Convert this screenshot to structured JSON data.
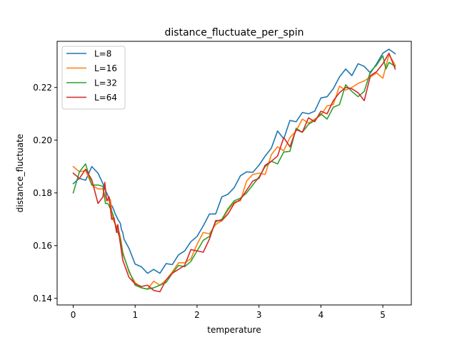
{
  "chart_data": {
    "type": "line",
    "title": "distance_fluctuate_per_spin",
    "xlabel": "temperature",
    "ylabel": "distance_fluctuate",
    "xlim": [
      -0.26,
      5.46
    ],
    "ylim": [
      0.1375,
      0.2375
    ],
    "xticks": [
      0,
      1,
      2,
      3,
      4,
      5
    ],
    "xtick_labels": [
      "0",
      "1",
      "2",
      "3",
      "4",
      "5"
    ],
    "yticks": [
      0.14,
      0.16,
      0.18,
      0.2,
      0.22
    ],
    "ytick_labels": [
      "0.14",
      "0.16",
      "0.18",
      "0.20",
      "0.22"
    ],
    "grid": false,
    "legend_position": "top-left",
    "series": [
      {
        "name": "L=8",
        "color": "#1f77b4",
        "points": [
          [
            0.0,
            0.1835
          ],
          [
            0.1,
            0.1855
          ],
          [
            0.2,
            0.1848
          ],
          [
            0.3,
            0.19
          ],
          [
            0.4,
            0.1875
          ],
          [
            0.48,
            0.1835
          ],
          [
            0.52,
            0.181
          ],
          [
            0.56,
            0.179
          ],
          [
            0.6,
            0.176
          ],
          [
            0.64,
            0.1745
          ],
          [
            0.68,
            0.172
          ],
          [
            0.72,
            0.17
          ],
          [
            0.76,
            0.1685
          ],
          [
            0.78,
            0.166
          ],
          [
            0.8,
            0.165
          ],
          [
            0.82,
            0.1625
          ],
          [
            0.9,
            0.159
          ],
          [
            1.0,
            0.153
          ],
          [
            1.1,
            0.152
          ],
          [
            1.2,
            0.1495
          ],
          [
            1.3,
            0.151
          ],
          [
            1.4,
            0.1495
          ],
          [
            1.5,
            0.1532
          ],
          [
            1.6,
            0.1528
          ],
          [
            1.7,
            0.1565
          ],
          [
            1.8,
            0.158
          ],
          [
            1.9,
            0.1615
          ],
          [
            2.0,
            0.1635
          ],
          [
            2.1,
            0.1675
          ],
          [
            2.2,
            0.172
          ],
          [
            2.3,
            0.172
          ],
          [
            2.4,
            0.1785
          ],
          [
            2.5,
            0.1795
          ],
          [
            2.6,
            0.182
          ],
          [
            2.7,
            0.1865
          ],
          [
            2.8,
            0.188
          ],
          [
            2.9,
            0.1878
          ],
          [
            3.0,
            0.1905
          ],
          [
            3.1,
            0.194
          ],
          [
            3.2,
            0.197
          ],
          [
            3.3,
            0.2035
          ],
          [
            3.4,
            0.2005
          ],
          [
            3.5,
            0.2075
          ],
          [
            3.6,
            0.207
          ],
          [
            3.7,
            0.2105
          ],
          [
            3.8,
            0.21
          ],
          [
            3.9,
            0.211
          ],
          [
            4.0,
            0.216
          ],
          [
            4.1,
            0.2165
          ],
          [
            4.2,
            0.2195
          ],
          [
            4.3,
            0.224
          ],
          [
            4.4,
            0.227
          ],
          [
            4.5,
            0.2245
          ],
          [
            4.6,
            0.229
          ],
          [
            4.7,
            0.228
          ],
          [
            4.8,
            0.2255
          ],
          [
            4.9,
            0.229
          ],
          [
            5.0,
            0.233
          ],
          [
            5.1,
            0.2345
          ],
          [
            5.2,
            0.2328
          ]
        ]
      },
      {
        "name": "L=16",
        "color": "#ff7f0e",
        "points": [
          [
            0.0,
            0.19
          ],
          [
            0.1,
            0.188
          ],
          [
            0.2,
            0.1885
          ],
          [
            0.3,
            0.183
          ],
          [
            0.4,
            0.1815
          ],
          [
            0.48,
            0.1815
          ],
          [
            0.52,
            0.1785
          ],
          [
            0.56,
            0.177
          ],
          [
            0.6,
            0.1775
          ],
          [
            0.64,
            0.17
          ],
          [
            0.68,
            0.168
          ],
          [
            0.72,
            0.167
          ],
          [
            0.76,
            0.1635
          ],
          [
            0.8,
            0.1575
          ],
          [
            0.9,
            0.15
          ],
          [
            1.0,
            0.146
          ],
          [
            1.1,
            0.144
          ],
          [
            1.2,
            0.1435
          ],
          [
            1.3,
            0.1465
          ],
          [
            1.4,
            0.145
          ],
          [
            1.5,
            0.147
          ],
          [
            1.6,
            0.15
          ],
          [
            1.7,
            0.1535
          ],
          [
            1.8,
            0.1535
          ],
          [
            1.9,
            0.155
          ],
          [
            2.0,
            0.1605
          ],
          [
            2.1,
            0.165
          ],
          [
            2.2,
            0.1645
          ],
          [
            2.3,
            0.168
          ],
          [
            2.4,
            0.1695
          ],
          [
            2.5,
            0.1735
          ],
          [
            2.6,
            0.1765
          ],
          [
            2.7,
            0.177
          ],
          [
            2.8,
            0.1845
          ],
          [
            2.9,
            0.187
          ],
          [
            3.0,
            0.1875
          ],
          [
            3.1,
            0.187
          ],
          [
            3.2,
            0.1945
          ],
          [
            3.3,
            0.1975
          ],
          [
            3.4,
            0.196
          ],
          [
            3.5,
            0.201
          ],
          [
            3.6,
            0.2035
          ],
          [
            3.7,
            0.208
          ],
          [
            3.8,
            0.2065
          ],
          [
            3.9,
            0.208
          ],
          [
            4.0,
            0.2095
          ],
          [
            4.1,
            0.213
          ],
          [
            4.2,
            0.2135
          ],
          [
            4.3,
            0.2205
          ],
          [
            4.4,
            0.219
          ],
          [
            4.5,
            0.22
          ],
          [
            4.6,
            0.2215
          ],
          [
            4.7,
            0.2225
          ],
          [
            4.8,
            0.224
          ],
          [
            4.9,
            0.2255
          ],
          [
            5.0,
            0.2235
          ],
          [
            5.1,
            0.2325
          ],
          [
            5.2,
            0.2285
          ]
        ]
      },
      {
        "name": "L=32",
        "color": "#2ca02c",
        "points": [
          [
            0.0,
            0.18
          ],
          [
            0.1,
            0.188
          ],
          [
            0.2,
            0.191
          ],
          [
            0.3,
            0.183
          ],
          [
            0.4,
            0.183
          ],
          [
            0.48,
            0.1825
          ],
          [
            0.52,
            0.176
          ],
          [
            0.56,
            0.176
          ],
          [
            0.6,
            0.174
          ],
          [
            0.64,
            0.172
          ],
          [
            0.68,
            0.168
          ],
          [
            0.72,
            0.165
          ],
          [
            0.76,
            0.1625
          ],
          [
            0.8,
            0.157
          ],
          [
            0.9,
            0.1505
          ],
          [
            1.0,
            0.145
          ],
          [
            1.1,
            0.144
          ],
          [
            1.2,
            0.1435
          ],
          [
            1.3,
            0.144
          ],
          [
            1.4,
            0.145
          ],
          [
            1.5,
            0.146
          ],
          [
            1.6,
            0.1495
          ],
          [
            1.7,
            0.1525
          ],
          [
            1.8,
            0.152
          ],
          [
            1.9,
            0.154
          ],
          [
            2.0,
            0.158
          ],
          [
            2.1,
            0.162
          ],
          [
            2.2,
            0.1635
          ],
          [
            2.3,
            0.169
          ],
          [
            2.4,
            0.17
          ],
          [
            2.5,
            0.174
          ],
          [
            2.6,
            0.177
          ],
          [
            2.7,
            0.178
          ],
          [
            2.8,
            0.18
          ],
          [
            2.9,
            0.183
          ],
          [
            3.0,
            0.186
          ],
          [
            3.1,
            0.19
          ],
          [
            3.2,
            0.192
          ],
          [
            3.3,
            0.191
          ],
          [
            3.4,
            0.1955
          ],
          [
            3.5,
            0.1958
          ],
          [
            3.6,
            0.2045
          ],
          [
            3.7,
            0.203
          ],
          [
            3.8,
            0.206
          ],
          [
            3.9,
            0.2075
          ],
          [
            4.0,
            0.21
          ],
          [
            4.1,
            0.208
          ],
          [
            4.2,
            0.2125
          ],
          [
            4.3,
            0.2135
          ],
          [
            4.4,
            0.221
          ],
          [
            4.5,
            0.2185
          ],
          [
            4.6,
            0.2165
          ],
          [
            4.7,
            0.2185
          ],
          [
            4.8,
            0.226
          ],
          [
            4.9,
            0.2285
          ],
          [
            5.0,
            0.232
          ],
          [
            5.05,
            0.227
          ],
          [
            5.1,
            0.2295
          ],
          [
            5.2,
            0.228
          ]
        ]
      },
      {
        "name": "L=64",
        "color": "#d62728",
        "points": [
          [
            0.0,
            0.1875
          ],
          [
            0.1,
            0.1855
          ],
          [
            0.2,
            0.189
          ],
          [
            0.3,
            0.185
          ],
          [
            0.4,
            0.176
          ],
          [
            0.48,
            0.1785
          ],
          [
            0.51,
            0.184
          ],
          [
            0.54,
            0.177
          ],
          [
            0.58,
            0.1785
          ],
          [
            0.62,
            0.17
          ],
          [
            0.66,
            0.1705
          ],
          [
            0.7,
            0.165
          ],
          [
            0.72,
            0.168
          ],
          [
            0.75,
            0.1625
          ],
          [
            0.8,
            0.1545
          ],
          [
            0.9,
            0.148
          ],
          [
            1.0,
            0.1455
          ],
          [
            1.1,
            0.1445
          ],
          [
            1.2,
            0.145
          ],
          [
            1.3,
            0.143
          ],
          [
            1.4,
            0.1425
          ],
          [
            1.5,
            0.147
          ],
          [
            1.6,
            0.1495
          ],
          [
            1.7,
            0.151
          ],
          [
            1.8,
            0.1525
          ],
          [
            1.9,
            0.1585
          ],
          [
            2.0,
            0.158
          ],
          [
            2.1,
            0.1575
          ],
          [
            2.2,
            0.1625
          ],
          [
            2.3,
            0.1695
          ],
          [
            2.4,
            0.1695
          ],
          [
            2.5,
            0.172
          ],
          [
            2.6,
            0.176
          ],
          [
            2.7,
            0.1775
          ],
          [
            2.8,
            0.181
          ],
          [
            2.9,
            0.1845
          ],
          [
            3.0,
            0.1855
          ],
          [
            3.1,
            0.1905
          ],
          [
            3.2,
            0.192
          ],
          [
            3.3,
            0.194
          ],
          [
            3.4,
            0.201
          ],
          [
            3.5,
            0.1975
          ],
          [
            3.6,
            0.204
          ],
          [
            3.7,
            0.203
          ],
          [
            3.8,
            0.2085
          ],
          [
            3.9,
            0.207
          ],
          [
            4.0,
            0.211
          ],
          [
            4.1,
            0.21
          ],
          [
            4.2,
            0.215
          ],
          [
            4.3,
            0.218
          ],
          [
            4.4,
            0.22
          ],
          [
            4.5,
            0.2195
          ],
          [
            4.6,
            0.218
          ],
          [
            4.7,
            0.215
          ],
          [
            4.8,
            0.2245
          ],
          [
            4.9,
            0.226
          ],
          [
            5.0,
            0.229
          ],
          [
            5.1,
            0.233
          ],
          [
            5.2,
            0.227
          ]
        ]
      }
    ]
  }
}
